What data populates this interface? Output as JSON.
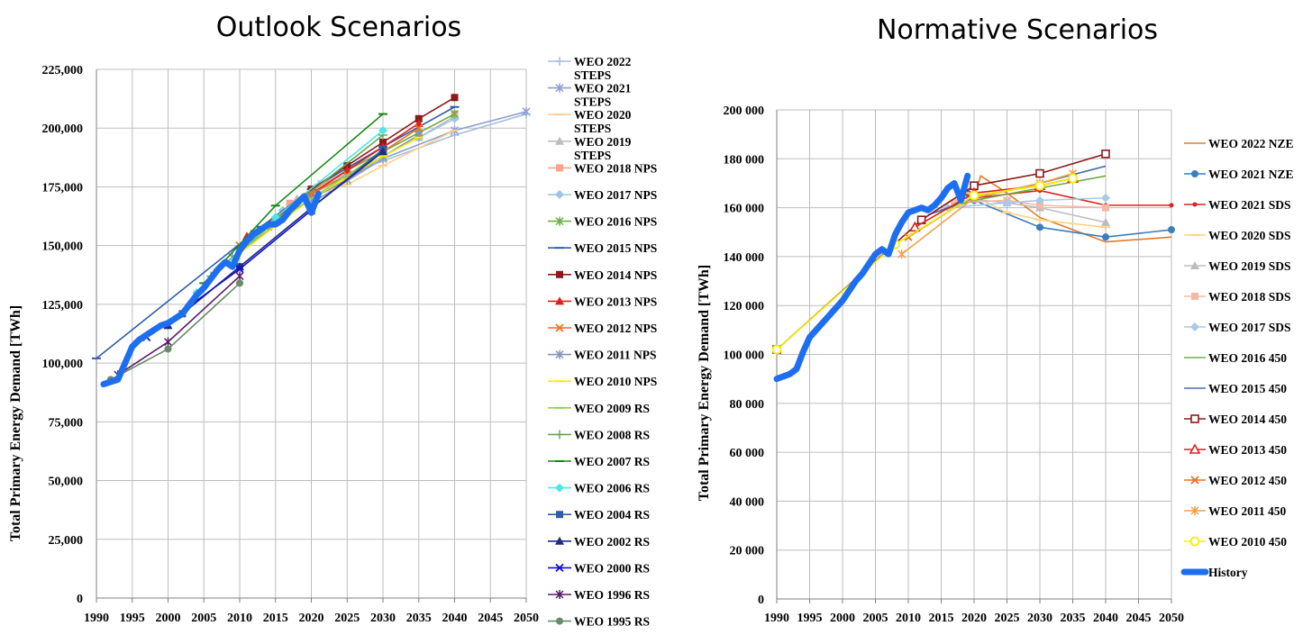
{
  "chart_data": [
    {
      "type": "line",
      "title": "Outlook Scenarios",
      "xlabel": "",
      "ylabel": "Total Primary Energy Demand [TWh]",
      "xlim": [
        1990,
        2050
      ],
      "ylim": [
        0,
        225000
      ],
      "x_ticks": [
        "1990",
        "1995",
        "2000",
        "2005",
        "2010",
        "2015",
        "2020",
        "2025",
        "2030",
        "2035",
        "2040",
        "2045",
        "2050"
      ],
      "y_ticks": [
        "0",
        "25,000",
        "50,000",
        "75,000",
        "100,000",
        "125,000",
        "150,000",
        "175,000",
        "200,000",
        "225,000"
      ],
      "y_tick_values": [
        0,
        25000,
        50000,
        75000,
        100000,
        125000,
        150000,
        175000,
        200000,
        225000
      ],
      "grid": true,
      "legend_position": "right",
      "series": [
        {
          "name": "WEO 2022\nSTEPS",
          "color": "#a7bfdc",
          "marker": "plus",
          "x": [
            2021,
            2030,
            2040,
            2050
          ],
          "y": [
            176000,
            186000,
            197000,
            206000
          ]
        },
        {
          "name": "WEO 2021\nSTEPS",
          "color": "#8e9fd0",
          "marker": "star",
          "x": [
            2020,
            2030,
            2040,
            2050
          ],
          "y": [
            168000,
            187000,
            199000,
            207000
          ]
        },
        {
          "name": "WEO 2020\nSTEPS",
          "color": "#fccf8a",
          "marker": "dash",
          "x": [
            2019,
            2025,
            2030,
            2040
          ],
          "y": [
            170000,
            176000,
            184000,
            199000
          ]
        },
        {
          "name": "WEO 2019\nSTEPS",
          "color": "#bdbdbd",
          "marker": "triangle",
          "x": [
            2018,
            2025,
            2030,
            2035,
            2040
          ],
          "y": [
            170000,
            180000,
            188000,
            196000,
            205000
          ]
        },
        {
          "name": "WEO 2018 NPS",
          "color": "#f4a58a",
          "marker": "square",
          "x": [
            2017,
            2025,
            2030,
            2035,
            2040
          ],
          "y": [
            168000,
            182000,
            190000,
            198000,
            206000
          ]
        },
        {
          "name": "WEO 2017 NPS",
          "color": "#9dc3e6",
          "marker": "diamond",
          "x": [
            2016,
            2025,
            2030,
            2035,
            2040
          ],
          "y": [
            165000,
            180000,
            188000,
            196000,
            204000
          ]
        },
        {
          "name": "WEO 2016 NPS",
          "color": "#70ad47",
          "marker": "star",
          "x": [
            2014,
            2020,
            2025,
            2030,
            2035,
            2040
          ],
          "y": [
            158000,
            172000,
            182000,
            190000,
            198000,
            206000
          ]
        },
        {
          "name": "WEO 2015 NPS",
          "color": "#2e5da8",
          "marker": "dash",
          "x": [
            1990,
            2013,
            2020,
            2030,
            2040
          ],
          "y": [
            102000,
            158000,
            174000,
            192000,
            209000
          ]
        },
        {
          "name": "WEO 2014 NPS",
          "color": "#8b1a1a",
          "marker": "square",
          "x": [
            2012,
            2020,
            2025,
            2030,
            2035,
            2040
          ],
          "y": [
            155000,
            174000,
            184000,
            194000,
            204000,
            213000
          ]
        },
        {
          "name": "WEO 2013 NPS",
          "color": "#e02020",
          "marker": "triangle",
          "x": [
            2011,
            2020,
            2025,
            2030,
            2035
          ],
          "y": [
            154000,
            172000,
            182000,
            192000,
            202000
          ]
        },
        {
          "name": "WEO 2012 NPS",
          "color": "#f07020",
          "marker": "x",
          "x": [
            2010,
            2020,
            2025,
            2030,
            2035
          ],
          "y": [
            150000,
            172000,
            180000,
            190000,
            200000
          ]
        },
        {
          "name": "WEO 2011 NPS",
          "color": "#7f95b8",
          "marker": "star",
          "x": [
            2009,
            2020,
            2025,
            2030,
            2035
          ],
          "y": [
            145000,
            170000,
            178000,
            188000,
            197000
          ]
        },
        {
          "name": "WEO 2010 NPS",
          "color": "#f4f000",
          "marker": "dash",
          "x": [
            2008,
            2020,
            2030,
            2035
          ],
          "y": [
            142000,
            170000,
            188000,
            196000
          ]
        },
        {
          "name": "WEO 2009 RS",
          "color": "#8fd04c",
          "marker": "dash",
          "x": [
            2007,
            2015,
            2020,
            2030
          ],
          "y": [
            140000,
            160000,
            170000,
            190000
          ]
        },
        {
          "name": "WEO 2008 RS",
          "color": "#6aa84f",
          "marker": "plus",
          "x": [
            2006,
            2015,
            2030
          ],
          "y": [
            137000,
            161000,
            197000
          ]
        },
        {
          "name": "WEO 2007 RS",
          "color": "#138a13",
          "marker": "dash",
          "x": [
            2005,
            2015,
            2030
          ],
          "y": [
            134000,
            167000,
            206000
          ]
        },
        {
          "name": "WEO 2006 RS",
          "color": "#4fe6e6",
          "marker": "diamond",
          "x": [
            2004,
            2015,
            2030
          ],
          "y": [
            130000,
            162000,
            199000
          ]
        },
        {
          "name": "WEO 2004 RS",
          "color": "#2e5da8",
          "marker": "square",
          "x": [
            2002,
            2010,
            2030
          ],
          "y": [
            121000,
            141000,
            191000
          ]
        },
        {
          "name": "WEO 2002 RS",
          "color": "#1f2a8a",
          "marker": "triangle",
          "x": [
            2000,
            2010,
            2020,
            2030
          ],
          "y": [
            116000,
            141000,
            166000,
            190000
          ]
        },
        {
          "name": "WEO 2000 RS",
          "color": "#1010d0",
          "marker": "x",
          "x": [
            1997,
            2010,
            2020
          ],
          "y": [
            111000,
            140000,
            165000
          ]
        },
        {
          "name": "WEO 1996 RS",
          "color": "#5a1a6a",
          "marker": "star",
          "x": [
            1993,
            2000,
            2010
          ],
          "y": [
            95000,
            109000,
            137000
          ]
        },
        {
          "name": "WEO 1995 RS",
          "color": "#6a8a6a",
          "marker": "circle",
          "x": [
            1992,
            2000,
            2010
          ],
          "y": [
            93000,
            106000,
            134000
          ]
        }
      ],
      "history": {
        "color": "#1e6ff0",
        "x": [
          1991,
          1992,
          1993,
          1994,
          1995,
          1996,
          1997,
          1998,
          1999,
          2000,
          2001,
          2002,
          2003,
          2004,
          2005,
          2006,
          2007,
          2008,
          2009,
          2010,
          2011,
          2012,
          2013,
          2014,
          2015,
          2016,
          2017,
          2018,
          2019,
          2020,
          2021
        ],
        "y": [
          91000,
          92000,
          93000,
          100000,
          107000,
          110000,
          112000,
          114000,
          116000,
          117000,
          119000,
          121000,
          125000,
          129000,
          132000,
          136000,
          140000,
          143000,
          141000,
          148000,
          152000,
          155000,
          157000,
          159000,
          159000,
          161000,
          165000,
          168000,
          171000,
          164000,
          172000
        ]
      }
    },
    {
      "type": "line",
      "title": "Normative Scenarios",
      "xlabel": "",
      "ylabel": "Total Primary Energy Demand [TWh]",
      "xlim": [
        1990,
        2050
      ],
      "ylim": [
        0,
        200000
      ],
      "x_ticks": [
        "1990",
        "1995",
        "2000",
        "2005",
        "2010",
        "2015",
        "2020",
        "2025",
        "2030",
        "2035",
        "2040",
        "2045",
        "2050"
      ],
      "y_ticks": [
        "0",
        "20 000",
        "40 000",
        "60 000",
        "80 000",
        "100 000",
        "120 000",
        "140 000",
        "160 000",
        "180 000",
        "200 000"
      ],
      "y_tick_values": [
        0,
        20000,
        40000,
        60000,
        80000,
        100000,
        120000,
        140000,
        160000,
        180000,
        200000
      ],
      "grid": true,
      "legend_position": "right",
      "series": [
        {
          "name": "WEO 2022 NZE",
          "color": "#e07b2a",
          "marker": "none",
          "x": [
            2020,
            2021,
            2025,
            2030,
            2040,
            2050
          ],
          "y": [
            164000,
            173000,
            166000,
            156000,
            146000,
            148000
          ]
        },
        {
          "name": "WEO 2021 NZE",
          "color": "#3a7dc0",
          "marker": "circle",
          "x": [
            2019,
            2020,
            2030,
            2040,
            2050
          ],
          "y": [
            166000,
            163000,
            152000,
            148000,
            151000
          ]
        },
        {
          "name": "WEO 2021 SDS",
          "color": "#e02020",
          "marker": "dot",
          "x": [
            2019,
            2020,
            2030,
            2040,
            2050
          ],
          "y": [
            166000,
            164000,
            167000,
            161000,
            161000
          ]
        },
        {
          "name": "WEO 2020 SDS",
          "color": "#ffd27f",
          "marker": "dash",
          "x": [
            2019,
            2025,
            2030,
            2040
          ],
          "y": [
            166000,
            158000,
            155000,
            152000
          ]
        },
        {
          "name": "WEO 2019 SDS",
          "color": "#bdbdbd",
          "marker": "triangle",
          "x": [
            2018,
            2025,
            2030,
            2040
          ],
          "y": [
            164000,
            162000,
            160000,
            154000
          ]
        },
        {
          "name": "WEO 2018 SDS",
          "color": "#f4b8a6",
          "marker": "square",
          "x": [
            2017,
            2025,
            2030,
            2040
          ],
          "y": [
            162000,
            163000,
            161000,
            160000
          ]
        },
        {
          "name": "WEO 2017 SDS",
          "color": "#a9c9e8",
          "marker": "diamond",
          "x": [
            2016,
            2025,
            2030,
            2040
          ],
          "y": [
            160000,
            162000,
            163000,
            164000
          ]
        },
        {
          "name": "WEO 2016 450",
          "color": "#70ad47",
          "marker": "none",
          "x": [
            2014,
            2020,
            2030,
            2040
          ],
          "y": [
            158000,
            163000,
            168000,
            173000
          ]
        },
        {
          "name": "WEO 2015 450",
          "color": "#4a6fb0",
          "marker": "none",
          "x": [
            2013,
            2020,
            2030,
            2040
          ],
          "y": [
            157000,
            164000,
            170000,
            177000
          ]
        },
        {
          "name": "WEO 2014 450",
          "color": "#8b1a1a",
          "marker": "square-open",
          "x": [
            1990,
            2012,
            2020,
            2030,
            2040
          ],
          "y": [
            102000,
            155000,
            169000,
            174000,
            182000
          ]
        },
        {
          "name": "WEO 2013 450",
          "color": "#e02020",
          "marker": "triangle-open",
          "x": [
            2011,
            2020,
            2030,
            2035
          ],
          "y": [
            152000,
            166000,
            169000,
            172000
          ]
        },
        {
          "name": "WEO 2012 450",
          "color": "#f07020",
          "marker": "x",
          "x": [
            2010,
            2020,
            2030,
            2035
          ],
          "y": [
            148000,
            165000,
            169000,
            172000
          ]
        },
        {
          "name": "WEO 2011 450",
          "color": "#f4a04a",
          "marker": "star",
          "x": [
            2009,
            2020,
            2030,
            2035
          ],
          "y": [
            141000,
            164000,
            170000,
            174000
          ]
        },
        {
          "name": "WEO 2010 450",
          "color": "#f4f000",
          "marker": "circle-open",
          "x": [
            1990,
            2008,
            2020,
            2030,
            2035
          ],
          "y": [
            102000,
            145000,
            165000,
            169000,
            172000
          ]
        },
        {
          "name": "History",
          "color": "#1e6ff0",
          "marker": "none",
          "is_history": true,
          "x": [
            1990,
            1991,
            1992,
            1993,
            1994,
            1995,
            1996,
            1997,
            1998,
            1999,
            2000,
            2001,
            2002,
            2003,
            2004,
            2005,
            2006,
            2007,
            2008,
            2009,
            2010,
            2011,
            2012,
            2013,
            2014,
            2015,
            2016,
            2017,
            2018,
            2019
          ],
          "y": [
            90000,
            91000,
            92000,
            94000,
            101000,
            107000,
            110000,
            113000,
            116000,
            119000,
            122000,
            126000,
            130000,
            133000,
            137000,
            141000,
            143000,
            141000,
            149000,
            154000,
            158000,
            159000,
            160000,
            159000,
            161000,
            164000,
            168000,
            170000,
            163000,
            173000
          ]
        }
      ]
    }
  ]
}
